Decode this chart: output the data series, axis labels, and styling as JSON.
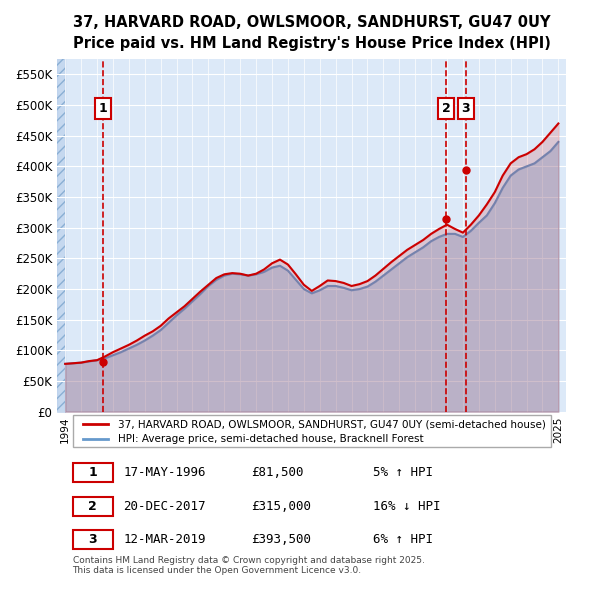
{
  "title": "37, HARVARD ROAD, OWLSMOOR, SANDHURST, GU47 0UY",
  "subtitle": "Price paid vs. HM Land Registry's House Price Index (HPI)",
  "ylabel": "",
  "ylim": [
    0,
    575000
  ],
  "yticks": [
    0,
    50000,
    100000,
    150000,
    200000,
    250000,
    300000,
    350000,
    400000,
    450000,
    500000,
    550000
  ],
  "ytick_labels": [
    "£0",
    "£50K",
    "£100K",
    "£150K",
    "£200K",
    "£250K",
    "£300K",
    "£350K",
    "£400K",
    "£450K",
    "£500K",
    "£550K"
  ],
  "xlim_start": 1993.5,
  "xlim_end": 2025.5,
  "background_color": "#dce9f8",
  "plot_bg_color": "#dce9f8",
  "hatch_color": "#b0c8e8",
  "grid_color": "#ffffff",
  "transactions": [
    {
      "label": "1",
      "date": "17-MAY-1996",
      "year": 1996.37,
      "price": 81500,
      "pct": "5%",
      "direction": "↑"
    },
    {
      "label": "2",
      "date": "20-DEC-2017",
      "year": 2017.96,
      "price": 315000,
      "pct": "16%",
      "direction": "↓"
    },
    {
      "label": "3",
      "date": "12-MAR-2019",
      "year": 2019.19,
      "price": 393500,
      "pct": "6%",
      "direction": "↑"
    }
  ],
  "legend_line1": "37, HARVARD ROAD, OWLSMOOR, SANDHURST, GU47 0UY (semi-detached house)",
  "legend_line2": "HPI: Average price, semi-detached house, Bracknell Forest",
  "footer1": "Contains HM Land Registry data © Crown copyright and database right 2025.",
  "footer2": "This data is licensed under the Open Government Licence v3.0.",
  "hpi_color": "#6699cc",
  "price_color": "#cc0000",
  "vline_color": "#cc0000",
  "hpi_years": [
    1994,
    1994.5,
    1995,
    1995.5,
    1996,
    1996.5,
    1997,
    1997.5,
    1998,
    1998.5,
    1999,
    1999.5,
    2000,
    2000.5,
    2001,
    2001.5,
    2002,
    2002.5,
    2003,
    2003.5,
    2004,
    2004.5,
    2005,
    2005.5,
    2006,
    2006.5,
    2007,
    2007.5,
    2008,
    2008.5,
    2009,
    2009.5,
    2010,
    2010.5,
    2011,
    2011.5,
    2012,
    2012.5,
    2013,
    2013.5,
    2014,
    2014.5,
    2015,
    2015.5,
    2016,
    2016.5,
    2017,
    2017.5,
    2018,
    2018.5,
    2019,
    2019.5,
    2020,
    2020.5,
    2021,
    2021.5,
    2022,
    2022.5,
    2023,
    2023.5,
    2024,
    2024.5,
    2025
  ],
  "hpi_values": [
    78000,
    79000,
    80000,
    82000,
    84000,
    87000,
    92000,
    97000,
    103000,
    109000,
    116000,
    124000,
    133000,
    145000,
    157000,
    168000,
    180000,
    192000,
    205000,
    215000,
    222000,
    225000,
    224000,
    222000,
    224000,
    228000,
    235000,
    238000,
    230000,
    215000,
    200000,
    193000,
    198000,
    205000,
    205000,
    202000,
    198000,
    200000,
    204000,
    212000,
    222000,
    232000,
    242000,
    252000,
    260000,
    268000,
    278000,
    285000,
    290000,
    290000,
    285000,
    295000,
    308000,
    320000,
    340000,
    365000,
    385000,
    395000,
    400000,
    405000,
    415000,
    425000,
    440000
  ],
  "price_years": [
    1994,
    1994.5,
    1995,
    1995.5,
    1996,
    1996.5,
    1997,
    1997.5,
    1998,
    1998.5,
    1999,
    1999.5,
    2000,
    2000.5,
    2001,
    2001.5,
    2002,
    2002.5,
    2003,
    2003.5,
    2004,
    2004.5,
    2005,
    2005.5,
    2006,
    2006.5,
    2007,
    2007.5,
    2008,
    2008.5,
    2009,
    2009.5,
    2010,
    2010.5,
    2011,
    2011.5,
    2012,
    2012.5,
    2013,
    2013.5,
    2014,
    2014.5,
    2015,
    2015.5,
    2016,
    2016.5,
    2017,
    2017.5,
    2018,
    2018.5,
    2019,
    2019.5,
    2020,
    2020.5,
    2021,
    2021.5,
    2022,
    2022.5,
    2023,
    2023.5,
    2024,
    2024.5,
    2025
  ],
  "price_values": [
    78000,
    79000,
    80000,
    82500,
    84000,
    90000,
    97000,
    103000,
    109000,
    116000,
    124000,
    131000,
    140000,
    152000,
    162000,
    172000,
    184000,
    196000,
    207000,
    218000,
    224000,
    226000,
    225000,
    222000,
    225000,
    232000,
    242000,
    248000,
    240000,
    224000,
    207000,
    197000,
    205000,
    214000,
    213000,
    210000,
    205000,
    208000,
    213000,
    222000,
    233000,
    244000,
    254000,
    264000,
    272000,
    280000,
    290000,
    298000,
    305000,
    298000,
    292000,
    305000,
    320000,
    338000,
    358000,
    385000,
    405000,
    415000,
    420000,
    428000,
    440000,
    455000,
    470000
  ]
}
